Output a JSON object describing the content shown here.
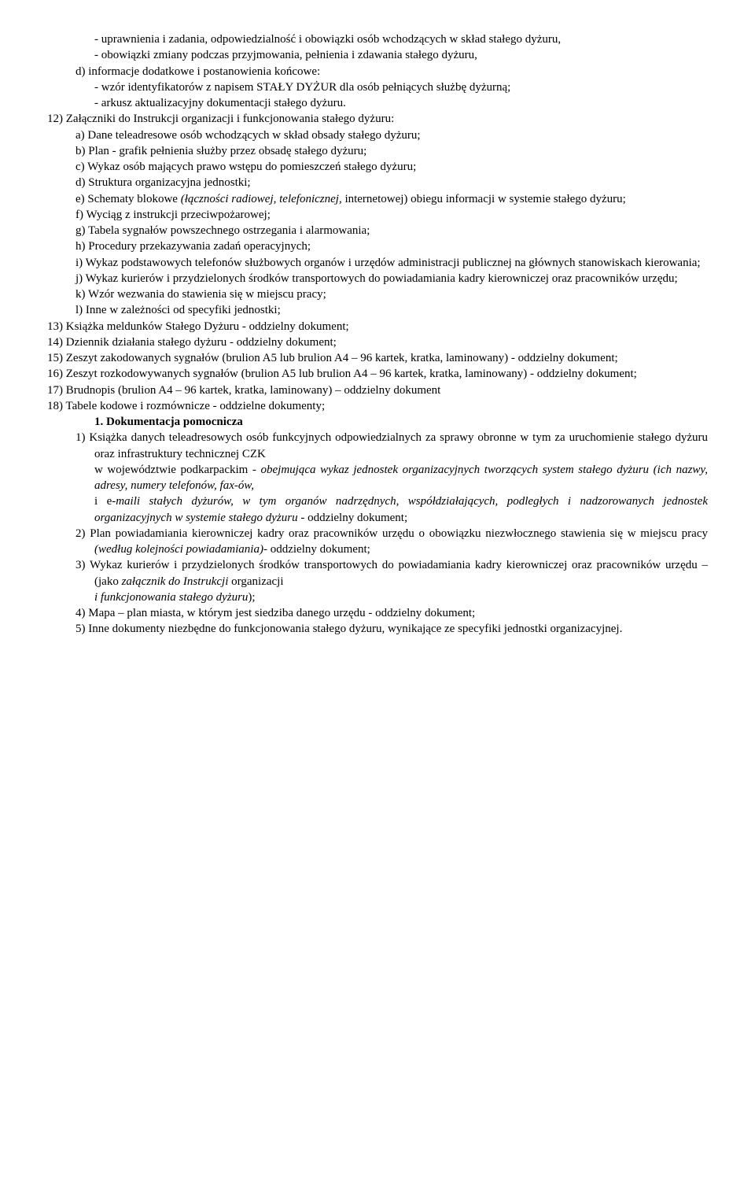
{
  "dash1": "- uprawnienia i zadania, odpowiedzialność i obowiązki osób wchodzących w skład stałego dyżuru,",
  "dash2": "- obowiązki zmiany podczas przyjmowania, pełnienia i zdawania stałego dyżuru,",
  "d_item": "d) informacje dodatkowe i postanowienia końcowe:",
  "dash3": "- wzór identyfikatorów z napisem STAŁY DYŻUR dla osób pełniących służbę dyżurną;",
  "dash4": "- arkusz aktualizacyjny dokumentacji stałego dyżuru.",
  "p12": "12) Załączniki do Instrukcji organizacji i funkcjonowania stałego dyżuru:",
  "p12a": "a)  Dane teleadresowe osób wchodzących w skład obsady stałego dyżuru;",
  "p12b": "b)  Plan - grafik pełnienia służby przez obsadę stałego dyżuru;",
  "p12c": "c)  Wykaz osób mających prawo wstępu do pomieszczeń stałego dyżuru;",
  "p12d": "d)  Struktura organizacyjna jednostki;",
  "p12e_1": "e)  Schematy blokowe ",
  "p12e_2": "(łączności radiowej, telefonicznej",
  "p12e_3": ", internetowej) obiegu informacji w systemie stałego dyżuru;",
  "p12f": "f)  Wyciąg z instrukcji przeciwpożarowej;",
  "p12g": "g)  Tabela sygnałów powszechnego ostrzegania i alarmowania;",
  "p12h": "h)  Procedury przekazywania zadań operacyjnych;",
  "p12i": "i)  Wykaz podstawowych telefonów służbowych organów i urzędów administracji publicznej na głównych stanowiskach kierowania;",
  "p12j": "j)  Wykaz kurierów i przydzielonych środków transportowych do powiadamiania kadry kierowniczej oraz pracowników urzędu;",
  "p12k": "k)  Wzór wezwania do stawienia się w miejscu pracy;",
  "p12l": "l)  Inne w zależności od specyfiki jednostki;",
  "p13": "13) Książka meldunków Stałego Dyżuru - oddzielny dokument;",
  "p14": "14) Dziennik działania stałego dyżuru - oddzielny dokument;",
  "p15": "15) Zeszyt zakodowanych sygnałów (brulion A5 lub brulion A4 – 96 kartek, kratka, laminowany) - oddzielny dokument;",
  "p16": "16) Zeszyt rozkodowywanych sygnałów (brulion A5 lub brulion A4 – 96 kartek, kratka, laminowany) - oddzielny dokument;",
  "p17": "17) Brudnopis (brulion A4 – 96 kartek, kratka, laminowany) – oddzielny dokument",
  "p18": "18) Tabele kodowe i rozmównicze - oddzielne dokumenty;",
  "heading": "1.  Dokumentacja pomocnicza",
  "s1_a": "1)  Książka danych teleadresowych osób funkcyjnych odpowiedzialnych za sprawy obronne w tym za uruchomienie stałego dyżuru oraz infrastruktury technicznej CZK",
  "s1_b1": "w województwie podkarpackim - ",
  "s1_b2": "obejmująca wykaz jednostek organizacyjnych tworzących system stałego dyżuru (ich nazwy, adresy, numery telefonów, fax-ów,",
  "s1_c1_pre": " i e",
  "s1_c1": "-maili stałych dyżurów, w tym organów nadrzędnych, współdziałających, podległych i nadzorowanych jednostek organizacyjnych w systemie stałego dyżuru ",
  "s1_c2": "- oddzielny dokument;",
  "s2_a": "2)  Plan powiadamiania kierowniczej kadry oraz pracowników urzędu o obowiązku niezwłocznego stawienia się w miejscu pracy ",
  "s2_b": "(według kolejności powiadamiania)",
  "s2_c": "- oddzielny dokument;",
  "s3_a": "3)  Wykaz kurierów i przydzielonych środków transportowych do powiadamiania kadry kierowniczej oraz pracowników urzędu – (jako ",
  "s3_b": "załącznik do Instrukcji ",
  "s3_c": "organizacji",
  "s3_d": "i funkcjonowania stałego dyżuru",
  "s3_e": ");",
  "s4": "4)  Mapa – plan miasta, w którym jest siedziba danego urzędu - oddzielny dokument;",
  "s5": "5)  Inne dokumenty niezbędne do funkcjonowania stałego dyżuru, wynikające ze specyfiki jednostki organizacyjnej."
}
